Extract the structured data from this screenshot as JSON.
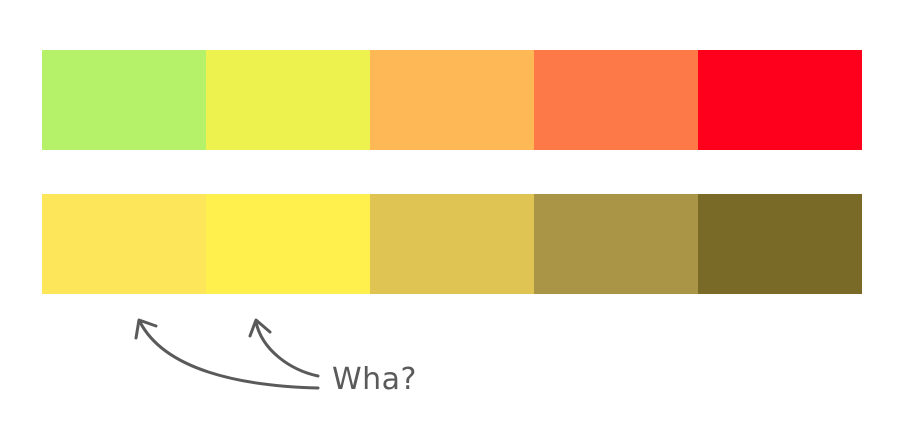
{
  "palettes": {
    "top_row": {
      "swatches": [
        "#b5f26a",
        "#eef24f",
        "#feb856",
        "#fe7948",
        "#fe001b"
      ]
    },
    "bottom_row": {
      "swatches": [
        "#fee65a",
        "#fff04d",
        "#e0c453",
        "#a99545",
        "#7a6a28"
      ]
    }
  },
  "annotation": {
    "text": "Wha?",
    "stroke_color": "#5a5a5a",
    "points_to_bottom_swatches": [
      1,
      2
    ]
  }
}
